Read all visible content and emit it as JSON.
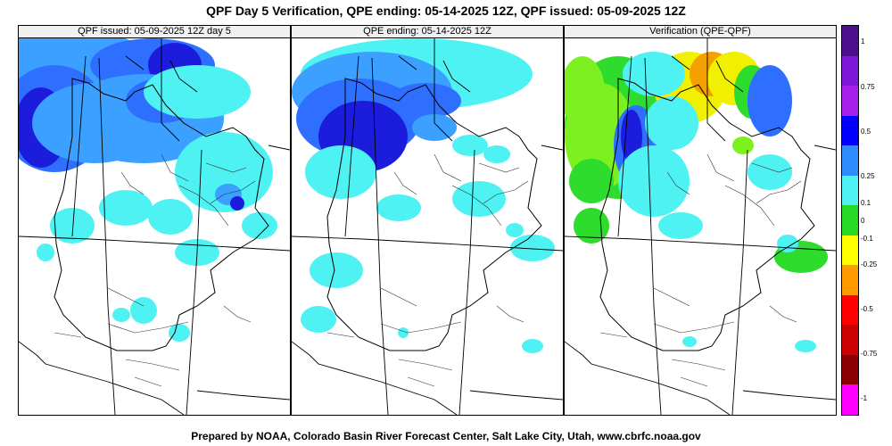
{
  "title": "QPF Day 5 Verification, QPE ending: 05-14-2025 12Z, QPF issued: 05-09-2025 12Z",
  "footer": "Prepared by NOAA, Colorado Basin River Forecast Center, Salt Lake City, Utah, www.cbrfc.noaa.gov",
  "panels": [
    {
      "title": "QPF issued: 05-09-2025 12Z day 5"
    },
    {
      "title": "QPE ending: 05-14-2025 12Z"
    },
    {
      "title": "Verification (QPE-QPF)"
    }
  ],
  "legend": {
    "ticks": [
      "1",
      "0.75",
      "0.5",
      "0.25",
      "0.1",
      "0",
      "-0.1",
      "-0.25",
      "-0.5",
      "-0.75",
      "-1"
    ],
    "colors": [
      "#4b0f8e",
      "#7c17d6",
      "#a51eea",
      "#0000ff",
      "#2f8cff",
      "#4ff2f2",
      "#25d925",
      "#ffff00",
      "#ff9a00",
      "#ff0000",
      "#cc0000",
      "#8b0000",
      "#ff00ff"
    ]
  },
  "palette": {
    "blue_dark": "#1c1cdc",
    "blue_mid": "#2f6fff",
    "blue_light": "#3ba0ff",
    "cyan": "#4ff2f2",
    "green": "#2ddc2d",
    "lime": "#7df020",
    "yellow": "#f0f000",
    "orange": "#f4a000",
    "purple": "#6a20c8"
  }
}
